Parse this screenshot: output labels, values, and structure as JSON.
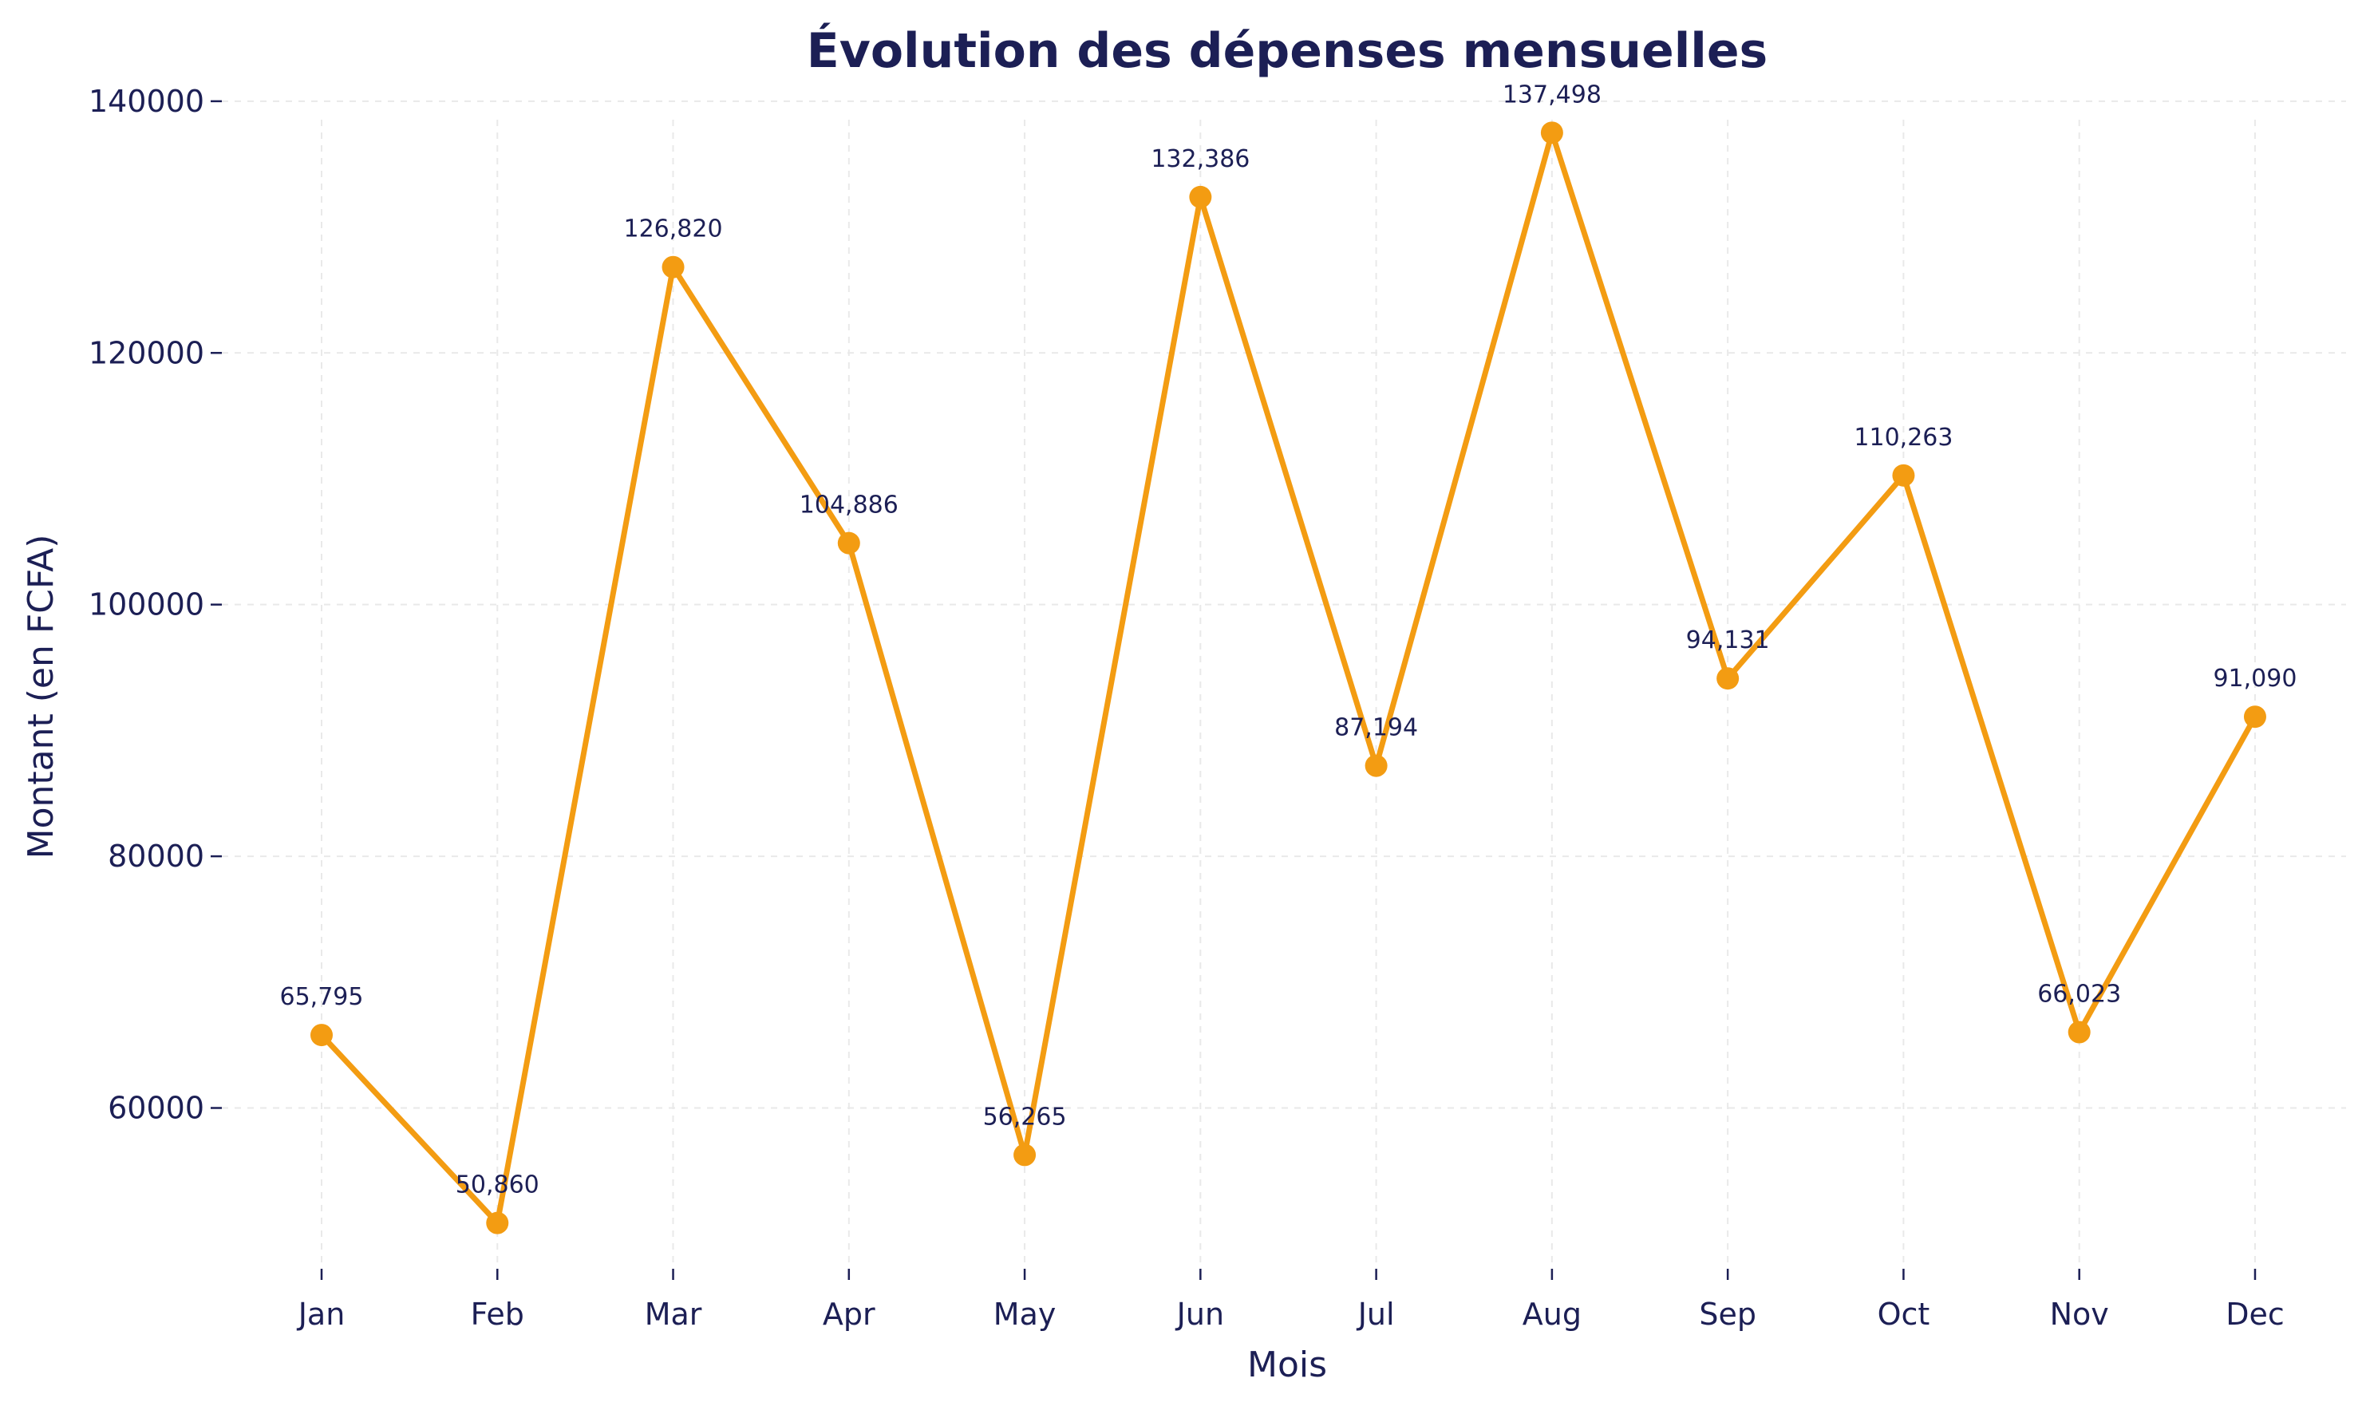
{
  "chart_data": {
    "type": "line",
    "title": "Évolution des dépenses mensuelles",
    "xlabel": "Mois",
    "ylabel": "Montant (en FCFA)",
    "categories": [
      "Jan",
      "Feb",
      "Mar",
      "Apr",
      "May",
      "Jun",
      "Jul",
      "Aug",
      "Sep",
      "Oct",
      "Nov",
      "Dec"
    ],
    "series": [
      {
        "values": [
          65795,
          50860,
          126820,
          104886,
          56265,
          132386,
          87194,
          137498,
          94131,
          110263,
          66023,
          91090
        ],
        "data_labels": [
          "65,795",
          "50,860",
          "126,820",
          "104,886",
          "56,265",
          "132,386",
          "87,194",
          "137,498",
          "94,131",
          "110,263",
          "66,023",
          "91,090"
        ],
        "color": "#f39c12"
      }
    ],
    "yticks": [
      60000,
      80000,
      100000,
      120000,
      140000
    ],
    "ytick_labels": [
      "60000",
      "80000",
      "100000",
      "120000",
      "140000"
    ],
    "ylim": [
      46526,
      141830
    ],
    "grid": true,
    "legend": "none",
    "colors": {
      "text": "#1c1f55",
      "grid": "#e9e9e9",
      "line": "#f39c12"
    }
  }
}
